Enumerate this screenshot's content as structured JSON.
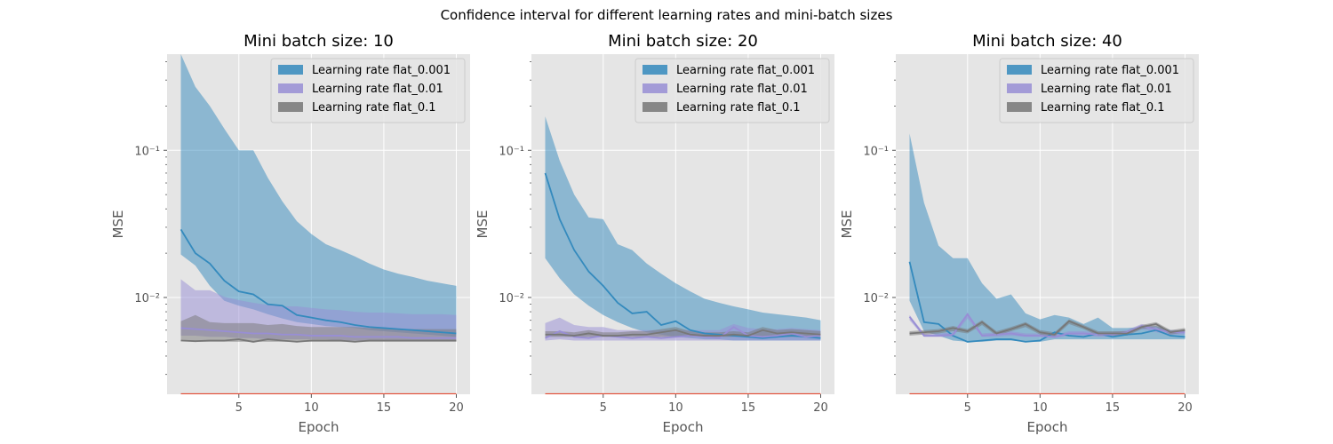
{
  "figure": {
    "suptitle": "Confidence interval for different learning rates and mini-batch sizes"
  },
  "chart_data": [
    {
      "type": "line",
      "title": "Mini batch size: 10",
      "xlabel": "Epoch",
      "ylabel": "MSE",
      "yscale": "log",
      "xlim": [
        0.05,
        20.95
      ],
      "ylim": [
        0.0022,
        0.45
      ],
      "xticks": [
        5,
        10,
        15,
        20
      ],
      "yticks": [
        {
          "value": 0.01,
          "label": "10⁻²"
        },
        {
          "value": 0.1,
          "label": "10⁻¹"
        }
      ],
      "grid": true,
      "legend_position": "top-right",
      "baseline": {
        "y": 0.0022,
        "color": "#e24a33"
      },
      "x": [
        1,
        2,
        3,
        4,
        5,
        6,
        7,
        8,
        9,
        10,
        11,
        12,
        13,
        14,
        15,
        16,
        17,
        18,
        19,
        20
      ],
      "series": [
        {
          "name": "Learning rate flat_0.001",
          "color": "#348abd",
          "mean": [
            0.029,
            0.02,
            0.017,
            0.013,
            0.011,
            0.0105,
            0.009,
            0.0088,
            0.0076,
            0.0073,
            0.007,
            0.0068,
            0.0065,
            0.0063,
            0.0062,
            0.0061,
            0.006,
            0.0059,
            0.0058,
            0.0057
          ],
          "lower": [
            0.0196,
            0.0165,
            0.012,
            0.0095,
            0.0088,
            0.0083,
            0.0077,
            0.0072,
            0.0068,
            0.0066,
            0.0064,
            0.0063,
            0.0062,
            0.006,
            0.0059,
            0.0058,
            0.0057,
            0.0056,
            0.0055,
            0.0054
          ],
          "upper": [
            0.45,
            0.27,
            0.2,
            0.14,
            0.1,
            0.1,
            0.065,
            0.045,
            0.033,
            0.027,
            0.023,
            0.021,
            0.019,
            0.017,
            0.0155,
            0.0145,
            0.0138,
            0.013,
            0.0125,
            0.012
          ]
        },
        {
          "name": "Learning rate flat_0.01",
          "color": "#988ed5",
          "mean": [
            0.0062,
            0.0061,
            0.006,
            0.0059,
            0.0058,
            0.0057,
            0.0057,
            0.0056,
            0.0056,
            0.0055,
            0.0055,
            0.0055,
            0.0054,
            0.0054,
            0.0054,
            0.0054,
            0.0053,
            0.0053,
            0.0053,
            0.0053
          ],
          "lower": [
            0.0055,
            0.0055,
            0.0054,
            0.0054,
            0.0053,
            0.0053,
            0.0052,
            0.0052,
            0.0052,
            0.0052,
            0.0052,
            0.0051,
            0.0051,
            0.0051,
            0.0051,
            0.0051,
            0.0051,
            0.0051,
            0.0051,
            0.0051
          ],
          "upper": [
            0.0133,
            0.0112,
            0.0112,
            0.0101,
            0.0096,
            0.0092,
            0.0089,
            0.0087,
            0.0087,
            0.0085,
            0.0083,
            0.0082,
            0.008,
            0.0079,
            0.0079,
            0.0078,
            0.0077,
            0.0077,
            0.0077,
            0.0076
          ]
        },
        {
          "name": "Learning rate flat_0.1",
          "color": "#777777",
          "mean": [
            0.0051,
            0.00505,
            0.0051,
            0.0051,
            0.0052,
            0.005,
            0.0052,
            0.0051,
            0.005,
            0.0051,
            0.0051,
            0.0051,
            0.005,
            0.0051,
            0.0051,
            0.0051,
            0.0051,
            0.0051,
            0.0051,
            0.0051
          ],
          "lower": [
            0.0051,
            0.005,
            0.005,
            0.005,
            0.005,
            0.005,
            0.005,
            0.005,
            0.005,
            0.005,
            0.005,
            0.005,
            0.005,
            0.005,
            0.005,
            0.005,
            0.005,
            0.005,
            0.005,
            0.005
          ],
          "upper": [
            0.0069,
            0.0076,
            0.0068,
            0.0067,
            0.0067,
            0.0067,
            0.0065,
            0.0066,
            0.0064,
            0.0063,
            0.0063,
            0.0063,
            0.0063,
            0.0062,
            0.0062,
            0.0061,
            0.0061,
            0.0061,
            0.0061,
            0.0061
          ]
        }
      ]
    },
    {
      "type": "line",
      "title": "Mini batch size: 20",
      "xlabel": "Epoch",
      "ylabel": "MSE",
      "yscale": "log",
      "xlim": [
        0.05,
        20.95
      ],
      "ylim": [
        0.0022,
        0.45
      ],
      "xticks": [
        5,
        10,
        15,
        20
      ],
      "yticks": [
        {
          "value": 0.01,
          "label": "10⁻²"
        },
        {
          "value": 0.1,
          "label": "10⁻¹"
        }
      ],
      "grid": true,
      "legend_position": "top-right",
      "baseline": {
        "y": 0.0022,
        "color": "#e24a33"
      },
      "x": [
        1,
        2,
        3,
        4,
        5,
        6,
        7,
        8,
        9,
        10,
        11,
        12,
        13,
        14,
        15,
        16,
        17,
        18,
        19,
        20
      ],
      "series": [
        {
          "name": "Learning rate flat_0.001",
          "color": "#348abd",
          "mean": [
            0.07,
            0.034,
            0.021,
            0.015,
            0.012,
            0.0092,
            0.0078,
            0.008,
            0.0065,
            0.0069,
            0.006,
            0.0057,
            0.0056,
            0.0055,
            0.0054,
            0.0053,
            0.0054,
            0.0055,
            0.0054,
            0.0053
          ],
          "lower": [
            0.0185,
            0.0135,
            0.0105,
            0.0088,
            0.0076,
            0.0068,
            0.0062,
            0.0058,
            0.0056,
            0.0054,
            0.0053,
            0.0052,
            0.0052,
            0.0051,
            0.0051,
            0.0051,
            0.0051,
            0.0051,
            0.0051,
            0.0051
          ],
          "upper": [
            0.17,
            0.085,
            0.05,
            0.035,
            0.034,
            0.023,
            0.021,
            0.017,
            0.0145,
            0.0125,
            0.011,
            0.0098,
            0.0092,
            0.0087,
            0.0083,
            0.0079,
            0.0077,
            0.0075,
            0.0073,
            0.007
          ]
        },
        {
          "name": "Learning rate flat_0.01",
          "color": "#988ed5",
          "mean": [
            0.0053,
            0.0059,
            0.0054,
            0.0053,
            0.0055,
            0.0054,
            0.0053,
            0.0054,
            0.0053,
            0.0054,
            0.0055,
            0.0054,
            0.0053,
            0.0063,
            0.0055,
            0.0054,
            0.0055,
            0.0057,
            0.0054,
            0.0055
          ],
          "lower": [
            0.0051,
            0.0052,
            0.0051,
            0.0051,
            0.0051,
            0.0051,
            0.0051,
            0.0051,
            0.0051,
            0.0051,
            0.0051,
            0.0051,
            0.0051,
            0.0051,
            0.0051,
            0.0051,
            0.0051,
            0.0051,
            0.0051,
            0.0051
          ],
          "upper": [
            0.0067,
            0.0073,
            0.0065,
            0.0063,
            0.0063,
            0.006,
            0.006,
            0.006,
            0.006,
            0.006,
            0.006,
            0.006,
            0.006,
            0.0066,
            0.0062,
            0.0061,
            0.0061,
            0.0062,
            0.0061,
            0.006
          ]
        },
        {
          "name": "Learning rate flat_0.1",
          "color": "#777777",
          "mean": [
            0.0056,
            0.0056,
            0.0055,
            0.0057,
            0.0055,
            0.0055,
            0.0056,
            0.0056,
            0.0058,
            0.006,
            0.0056,
            0.0055,
            0.0055,
            0.0056,
            0.0055,
            0.006,
            0.0057,
            0.0058,
            0.0057,
            0.0056
          ],
          "lower": [
            0.0054,
            0.0054,
            0.0054,
            0.0054,
            0.0054,
            0.0054,
            0.0054,
            0.0054,
            0.0054,
            0.0054,
            0.0054,
            0.0054,
            0.0054,
            0.0054,
            0.0054,
            0.0054,
            0.0054,
            0.0054,
            0.0054,
            0.0054
          ],
          "upper": [
            0.0059,
            0.0059,
            0.0058,
            0.006,
            0.0058,
            0.0058,
            0.0059,
            0.0059,
            0.0061,
            0.0063,
            0.0059,
            0.0058,
            0.0058,
            0.0059,
            0.0058,
            0.0063,
            0.006,
            0.0061,
            0.006,
            0.0059
          ]
        }
      ]
    },
    {
      "type": "line",
      "title": "Mini batch size: 40",
      "xlabel": "Epoch",
      "ylabel": "MSE",
      "yscale": "log",
      "xlim": [
        0.05,
        20.95
      ],
      "ylim": [
        0.0022,
        0.45
      ],
      "xticks": [
        5,
        10,
        15,
        20
      ],
      "yticks": [
        {
          "value": 0.01,
          "label": "10⁻²"
        },
        {
          "value": 0.1,
          "label": "10⁻¹"
        }
      ],
      "grid": true,
      "legend_position": "top-right",
      "baseline": {
        "y": 0.0022,
        "color": "#e24a33"
      },
      "x": [
        1,
        2,
        3,
        4,
        5,
        6,
        7,
        8,
        9,
        10,
        11,
        12,
        13,
        14,
        15,
        16,
        17,
        18,
        19,
        20
      ],
      "series": [
        {
          "name": "Learning rate flat_0.001",
          "color": "#348abd",
          "mean": [
            0.0175,
            0.0068,
            0.0066,
            0.0055,
            0.005,
            0.0051,
            0.0052,
            0.0052,
            0.005,
            0.0051,
            0.0058,
            0.0055,
            0.0054,
            0.0057,
            0.0054,
            0.0056,
            0.0057,
            0.006,
            0.0055,
            0.0054
          ],
          "lower": [
            0.0095,
            0.0059,
            0.0055,
            0.0051,
            0.005,
            0.005,
            0.0051,
            0.0051,
            0.005,
            0.005,
            0.0052,
            0.0052,
            0.0052,
            0.0052,
            0.0052,
            0.0052,
            0.0052,
            0.0052,
            0.0052,
            0.0052
          ],
          "upper": [
            0.13,
            0.044,
            0.0225,
            0.0185,
            0.0185,
            0.0125,
            0.0098,
            0.0105,
            0.0078,
            0.0071,
            0.0076,
            0.0073,
            0.0066,
            0.0073,
            0.0062,
            0.0062,
            0.0063,
            0.0064,
            0.006,
            0.0059
          ]
        },
        {
          "name": "Learning rate flat_0.01",
          "color": "#988ed5",
          "mean": [
            0.0074,
            0.0055,
            0.0055,
            0.0056,
            0.0077,
            0.0055,
            0.0056,
            0.0057,
            0.0055,
            0.0055,
            0.0054,
            0.0057,
            0.0057,
            0.0056,
            0.0056,
            0.0058,
            0.0064,
            0.0061,
            0.0058,
            0.0058
          ],
          "lower": [
            0.007,
            0.0054,
            0.0054,
            0.0054,
            0.0072,
            0.0054,
            0.0054,
            0.0055,
            0.0054,
            0.0054,
            0.0053,
            0.0055,
            0.0055,
            0.0054,
            0.0054,
            0.0056,
            0.0061,
            0.0058,
            0.0056,
            0.0056
          ],
          "upper": [
            0.0076,
            0.0057,
            0.0057,
            0.0058,
            0.0079,
            0.0057,
            0.0058,
            0.0059,
            0.0057,
            0.0057,
            0.0056,
            0.0059,
            0.0059,
            0.0058,
            0.0058,
            0.006,
            0.0066,
            0.0063,
            0.006,
            0.006
          ]
        },
        {
          "name": "Learning rate flat_0.1",
          "color": "#777777",
          "mean": [
            0.0057,
            0.0058,
            0.0059,
            0.0062,
            0.0059,
            0.0068,
            0.0057,
            0.0061,
            0.0066,
            0.0058,
            0.0056,
            0.0069,
            0.0063,
            0.0057,
            0.0057,
            0.0057,
            0.0063,
            0.0066,
            0.0058,
            0.006
          ],
          "lower": [
            0.0055,
            0.0056,
            0.0057,
            0.0059,
            0.0057,
            0.0065,
            0.0055,
            0.0059,
            0.0063,
            0.0056,
            0.0054,
            0.0066,
            0.0061,
            0.0055,
            0.0055,
            0.0055,
            0.0061,
            0.0063,
            0.0056,
            0.0058
          ],
          "upper": [
            0.0059,
            0.006,
            0.0061,
            0.0064,
            0.0061,
            0.007,
            0.0059,
            0.0063,
            0.0068,
            0.006,
            0.0058,
            0.0071,
            0.0065,
            0.0059,
            0.0059,
            0.0059,
            0.0065,
            0.0068,
            0.006,
            0.0062
          ]
        }
      ]
    }
  ]
}
